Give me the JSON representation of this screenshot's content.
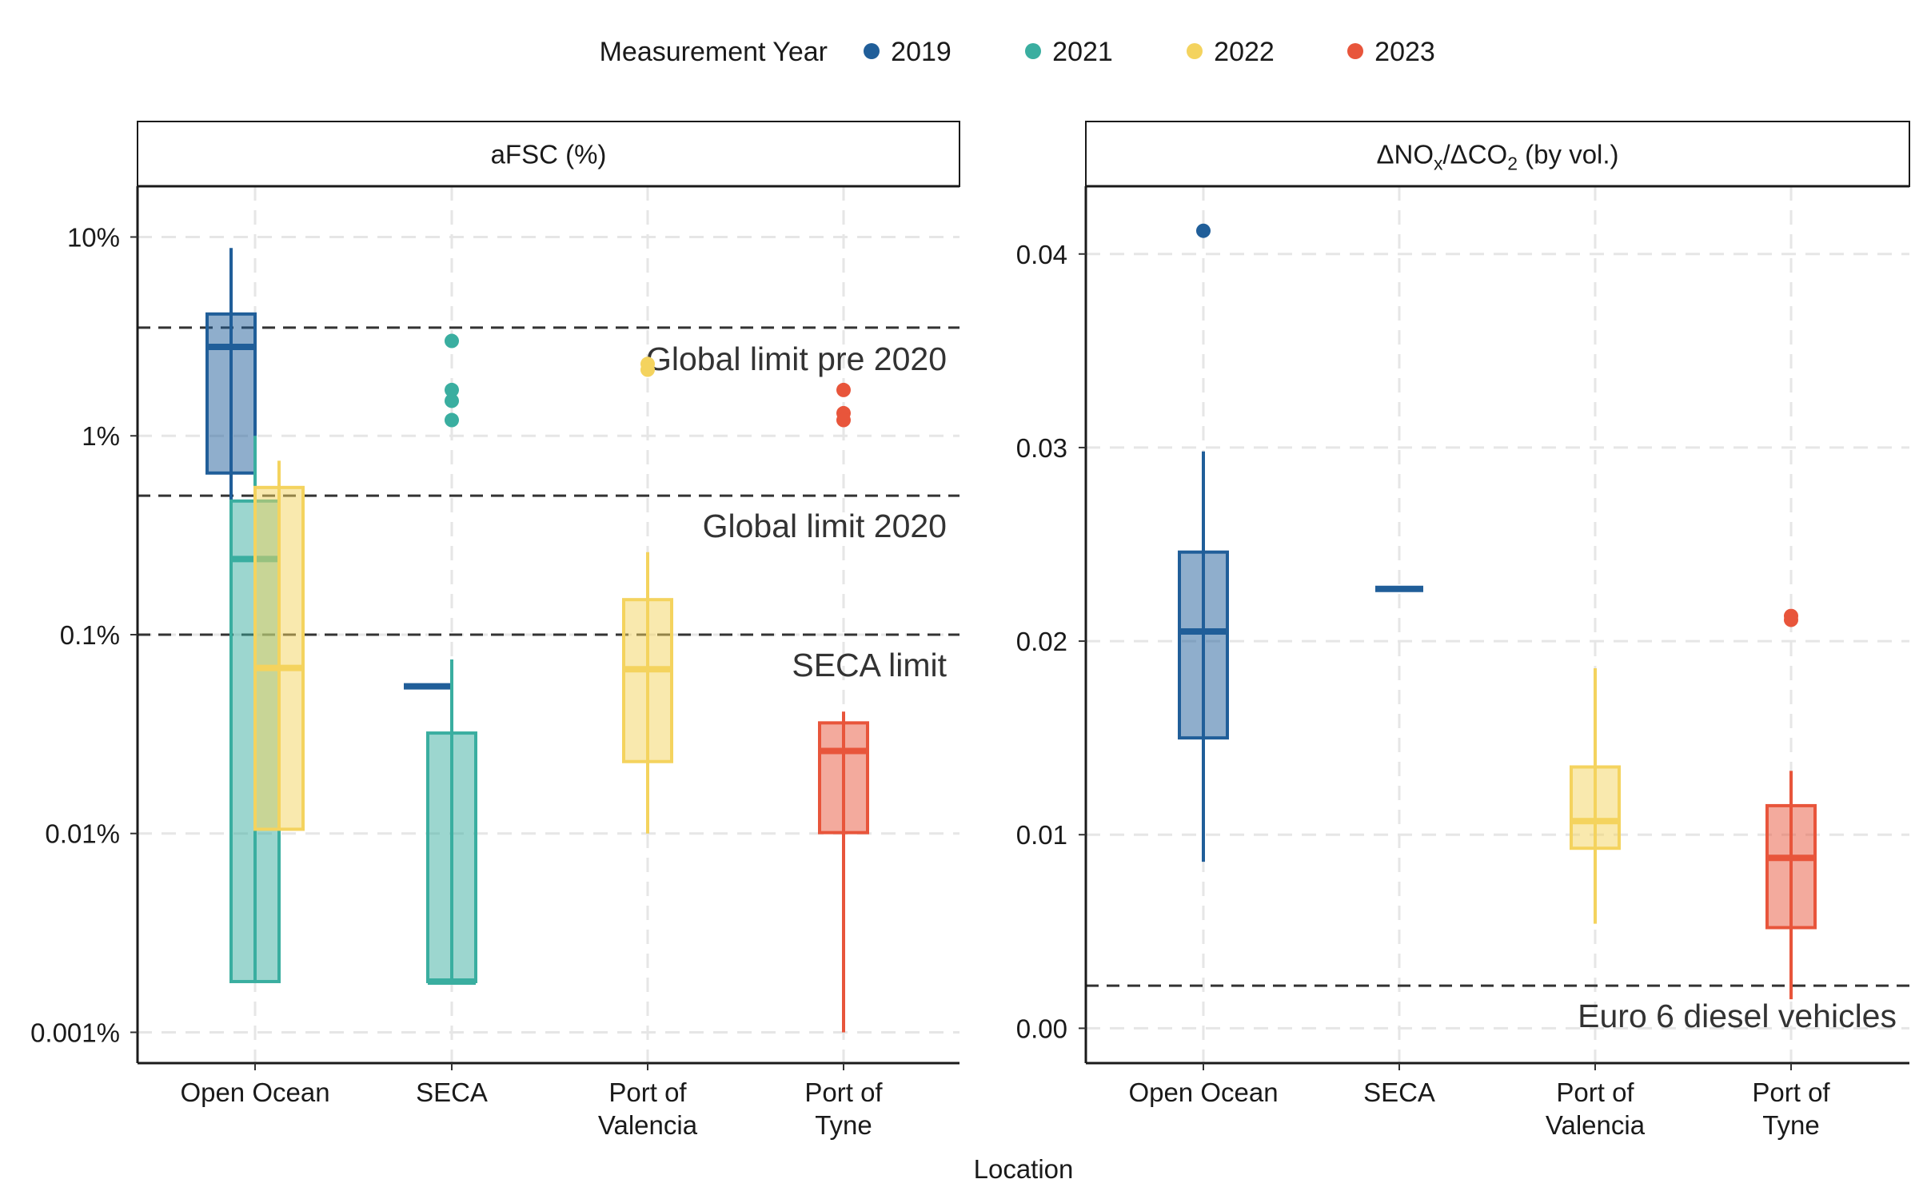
{
  "legend": {
    "title": "Measurement Year",
    "items": [
      {
        "label": "2019",
        "color": "#205e99"
      },
      {
        "label": "2021",
        "color": "#3aaea0"
      },
      {
        "label": "2022",
        "color": "#f4d35e"
      },
      {
        "label": "2023",
        "color": "#e8553b"
      }
    ]
  },
  "x_axis_title": "Location",
  "chart_data": [
    {
      "type": "boxplot",
      "panel_title": "aFSC (%)",
      "xlabel": "Location",
      "ylabel": "",
      "y_scale": "log10",
      "ylim": [
        0.0007,
        18
      ],
      "grid": true,
      "categories": [
        "Open Ocean",
        "SECA",
        "Port of Valencia",
        "Port of Tyne"
      ],
      "category_labels": [
        [
          "Open Ocean"
        ],
        [
          "SECA"
        ],
        [
          "Port of",
          "Valencia"
        ],
        [
          "Port of",
          "Tyne"
        ]
      ],
      "y_ticks": [
        0.001,
        0.01,
        0.1,
        1,
        10
      ],
      "y_tick_labels": [
        "0.001%",
        "0.01%",
        "0.1%",
        "1%",
        "10%"
      ],
      "reference_lines": [
        {
          "value": 3.5,
          "label": "Global limit pre 2020"
        },
        {
          "value": 0.5,
          "label": "Global limit 2020"
        },
        {
          "value": 0.1,
          "label": "SECA limit"
        }
      ],
      "boxes": [
        {
          "category": "Open Ocean",
          "year": "2019",
          "slot": -1,
          "q1": 0.65,
          "median": 2.8,
          "q3": 4.1,
          "whisker_low": 0.0018,
          "whisker_high": 8.8,
          "outliers": []
        },
        {
          "category": "Open Ocean",
          "year": "2021",
          "slot": 0,
          "q1": 0.0018,
          "median": 0.24,
          "q3": 0.47,
          "whisker_low": 0.0018,
          "whisker_high": 1.0,
          "outliers": []
        },
        {
          "category": "Open Ocean",
          "year": "2022",
          "slot": 1,
          "q1": 0.0105,
          "median": 0.068,
          "q3": 0.55,
          "whisker_low": 0.0105,
          "whisker_high": 0.75,
          "outliers": []
        },
        {
          "category": "SECA",
          "year": "2019",
          "slot": -1,
          "q1": 0.055,
          "median": 0.055,
          "q3": 0.055,
          "whisker_low": 0.055,
          "whisker_high": 0.055,
          "outliers": []
        },
        {
          "category": "SECA",
          "year": "2021",
          "slot": 0,
          "q1": 0.0018,
          "median": 0.0018,
          "q3": 0.032,
          "whisker_low": 0.0018,
          "whisker_high": 0.075,
          "outliers": [
            3.0,
            1.7,
            1.5,
            1.2
          ]
        },
        {
          "category": "Port of Valencia",
          "year": "2022",
          "slot": 0,
          "q1": 0.023,
          "median": 0.067,
          "q3": 0.15,
          "whisker_low": 0.01,
          "whisker_high": 0.26,
          "outliers": [
            2.3,
            2.15
          ]
        },
        {
          "category": "Port of Tyne",
          "year": "2023",
          "slot": 0,
          "q1": 0.0101,
          "median": 0.026,
          "q3": 0.036,
          "whisker_low": 0.001,
          "whisker_high": 0.041,
          "outliers": [
            1.7,
            1.3,
            1.2
          ]
        }
      ]
    },
    {
      "type": "boxplot",
      "panel_title": "ΔNOx/ΔCO2 (by vol.)",
      "panel_title_parts": {
        "delta": "Δ",
        "no": "NO",
        "x": "x",
        "slash": "/",
        "co": "CO",
        "two": "2",
        "suffix": " (by vol.)"
      },
      "xlabel": "Location",
      "ylabel": "",
      "y_scale": "linear",
      "ylim": [
        -0.0018,
        0.0435
      ],
      "grid": true,
      "categories": [
        "Open Ocean",
        "SECA",
        "Port of Valencia",
        "Port of Tyne"
      ],
      "category_labels": [
        [
          "Open Ocean"
        ],
        [
          "SECA"
        ],
        [
          "Port of",
          "Valencia"
        ],
        [
          "Port of",
          "Tyne"
        ]
      ],
      "y_ticks": [
        0.0,
        0.01,
        0.02,
        0.03,
        0.04
      ],
      "y_tick_labels": [
        "0.00",
        "0.01",
        "0.02",
        "0.03",
        "0.04"
      ],
      "reference_lines": [
        {
          "value": 0.0022,
          "label": "Euro 6 diesel vehicles"
        }
      ],
      "boxes": [
        {
          "category": "Open Ocean",
          "year": "2019",
          "slot": 0,
          "q1": 0.015,
          "median": 0.0205,
          "q3": 0.0246,
          "whisker_low": 0.0086,
          "whisker_high": 0.0298,
          "outliers": [
            0.0412
          ]
        },
        {
          "category": "SECA",
          "year": "2019",
          "slot": 0,
          "q1": 0.0227,
          "median": 0.0227,
          "q3": 0.0227,
          "whisker_low": 0.0227,
          "whisker_high": 0.0227,
          "outliers": []
        },
        {
          "category": "Port of Valencia",
          "year": "2022",
          "slot": 0,
          "q1": 0.0093,
          "median": 0.0107,
          "q3": 0.0135,
          "whisker_low": 0.0054,
          "whisker_high": 0.0186,
          "outliers": []
        },
        {
          "category": "Port of Tyne",
          "year": "2023",
          "slot": 0,
          "q1": 0.0052,
          "median": 0.0088,
          "q3": 0.0115,
          "whisker_low": 0.0015,
          "whisker_high": 0.0133,
          "outliers": [
            0.0213,
            0.0211
          ]
        }
      ]
    }
  ]
}
